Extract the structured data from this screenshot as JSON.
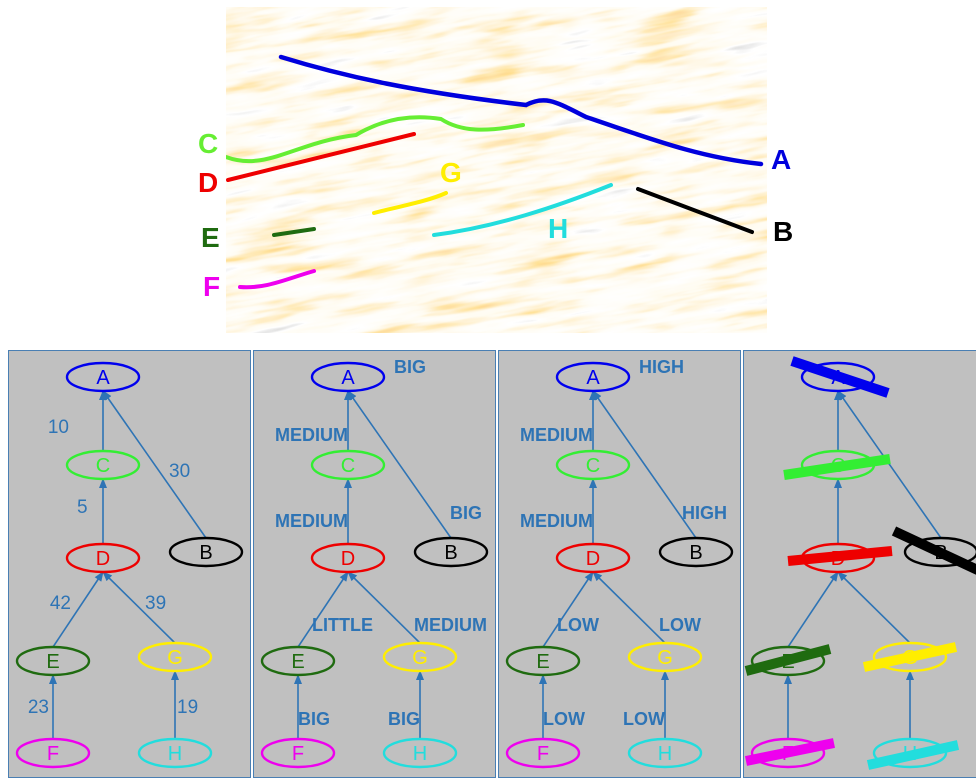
{
  "seismic": {
    "horizons": [
      {
        "id": "A",
        "color": "#0000dd"
      },
      {
        "id": "B",
        "color": "#000000"
      },
      {
        "id": "C",
        "color": "#66ee33"
      },
      {
        "id": "D",
        "color": "#ee0000"
      },
      {
        "id": "E",
        "color": "#1f6b10"
      },
      {
        "id": "F",
        "color": "#ee00ee"
      },
      {
        "id": "G",
        "color": "#ffee00"
      },
      {
        "id": "H",
        "color": "#22dddd"
      }
    ],
    "labels": {
      "A": "A",
      "B": "B",
      "C": "C",
      "D": "D",
      "E": "E",
      "F": "F",
      "G": "G",
      "H": "H"
    }
  },
  "colors": {
    "A": "#0000ee",
    "B": "#000000",
    "C": "#33ee33",
    "D": "#ee0000",
    "E": "#1f6b10",
    "F": "#ee00ee",
    "G": "#ffee00",
    "H": "#22dddd",
    "edge": "#2e74b5",
    "panel_bg": "#c0c0c0",
    "node_text": "#e020b0"
  },
  "tree": {
    "nodes": [
      "A",
      "B",
      "C",
      "D",
      "E",
      "F",
      "G",
      "H"
    ],
    "edges": [
      [
        "C",
        "A"
      ],
      [
        "B",
        "A"
      ],
      [
        "D",
        "C"
      ],
      [
        "E",
        "D"
      ],
      [
        "G",
        "D"
      ],
      [
        "F",
        "E"
      ],
      [
        "H",
        "G"
      ]
    ]
  },
  "panels": [
    {
      "edge_labels": {
        "C-A": "10",
        "B-A": "30",
        "D-C": "5",
        "E-D": "42",
        "G-D": "39",
        "F-E": "23",
        "H-G": "19"
      },
      "node_labels": {},
      "struck": false,
      "bold": false
    },
    {
      "edge_labels": {
        "C-A": "MEDIUM",
        "B-A": "BIG",
        "D-C": "MEDIUM",
        "E-D": "LITTLE",
        "G-D": "MEDIUM",
        "F-E": "BIG",
        "H-G": "BIG"
      },
      "node_labels": {
        "A": "BIG"
      },
      "struck": false,
      "bold": true
    },
    {
      "edge_labels": {
        "C-A": "MEDIUM",
        "B-A": "HIGH",
        "D-C": "MEDIUM",
        "E-D": "LOW",
        "G-D": "LOW",
        "F-E": "LOW",
        "H-G": "LOW"
      },
      "node_labels": {
        "A": "HIGH"
      },
      "struck": false,
      "bold": true
    },
    {
      "edge_labels": {},
      "node_labels": {},
      "struck": true,
      "bold": false
    }
  ]
}
